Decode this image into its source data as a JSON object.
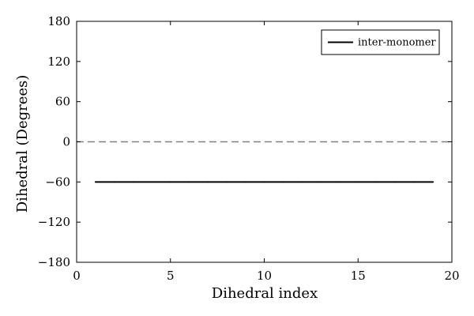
{
  "chart_data": {
    "type": "line",
    "title": "",
    "xlabel": "Dihedral index",
    "ylabel": "Dihedral (Degrees)",
    "xlim": [
      0,
      20
    ],
    "ylim": [
      -180,
      180
    ],
    "xticks": [
      0,
      5,
      10,
      15,
      20
    ],
    "yticks": [
      -180,
      -120,
      -60,
      0,
      60,
      120,
      180
    ],
    "xtick_labels": [
      "0",
      "5",
      "10",
      "15",
      "20"
    ],
    "ytick_labels": [
      "−180",
      "−120",
      "−60",
      "0",
      "60",
      "120",
      "180"
    ],
    "grid": false,
    "legend_position": "top-right",
    "series": [
      {
        "name": "inter-monomer",
        "color": "#000000",
        "style": "solid",
        "x": [
          1,
          2,
          3,
          4,
          5,
          6,
          7,
          8,
          9,
          10,
          11,
          12,
          13,
          14,
          15,
          16,
          17,
          18,
          19
        ],
        "y": [
          -60,
          -60,
          -60,
          -60,
          -60,
          -60,
          -60,
          -60,
          -60,
          -60,
          -60,
          -60,
          -60,
          -60,
          -60,
          -60,
          -60,
          -60,
          -60
        ]
      }
    ],
    "reference_lines": [
      {
        "orientation": "horizontal",
        "y": 0,
        "style": "dashed",
        "color": "#808080"
      }
    ]
  }
}
